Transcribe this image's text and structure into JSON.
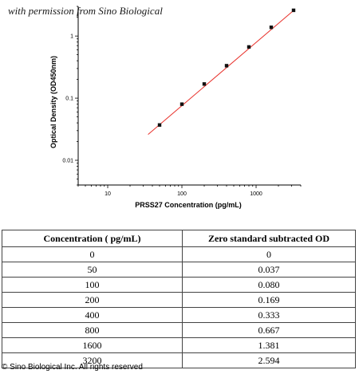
{
  "watermark": "with permission from Sino Biological",
  "copyright": "© Sino Biological Inc. All rights reserved",
  "colors": {
    "fit_line": "#e8302a",
    "points": "#111111",
    "axis": "#000000"
  },
  "chart_data": {
    "type": "scatter",
    "xlabel": "PRSS27 Concentration (pg/mL)",
    "ylabel": "Optical Density (OD450nm)",
    "xscale": "log",
    "yscale": "log",
    "xlim": [
      4,
      4000
    ],
    "ylim": [
      0.004,
      3
    ],
    "x_ticks": [
      10,
      100,
      1000
    ],
    "x_tick_labels": [
      "10",
      "100",
      "1000"
    ],
    "y_ticks": [
      0.01,
      0.1,
      1
    ],
    "y_tick_labels": [
      "0.01",
      "0.1",
      "1"
    ],
    "x": [
      50,
      100,
      200,
      400,
      800,
      1600,
      3200
    ],
    "y": [
      0.037,
      0.08,
      0.169,
      0.333,
      0.667,
      1.381,
      2.594
    ],
    "fit_line": {
      "x": [
        35,
        3300
      ],
      "y": [
        0.026,
        2.66
      ]
    },
    "grid": false,
    "legend": "none"
  },
  "table": {
    "headers": [
      "Concentration ( pg/mL)",
      "Zero standard subtracted OD"
    ],
    "rows": [
      [
        "0",
        "0"
      ],
      [
        "50",
        "0.037"
      ],
      [
        "100",
        "0.080"
      ],
      [
        "200",
        "0.169"
      ],
      [
        "400",
        "0.333"
      ],
      [
        "800",
        "0.667"
      ],
      [
        "1600",
        "1.381"
      ],
      [
        "3200",
        "2.594"
      ]
    ]
  }
}
